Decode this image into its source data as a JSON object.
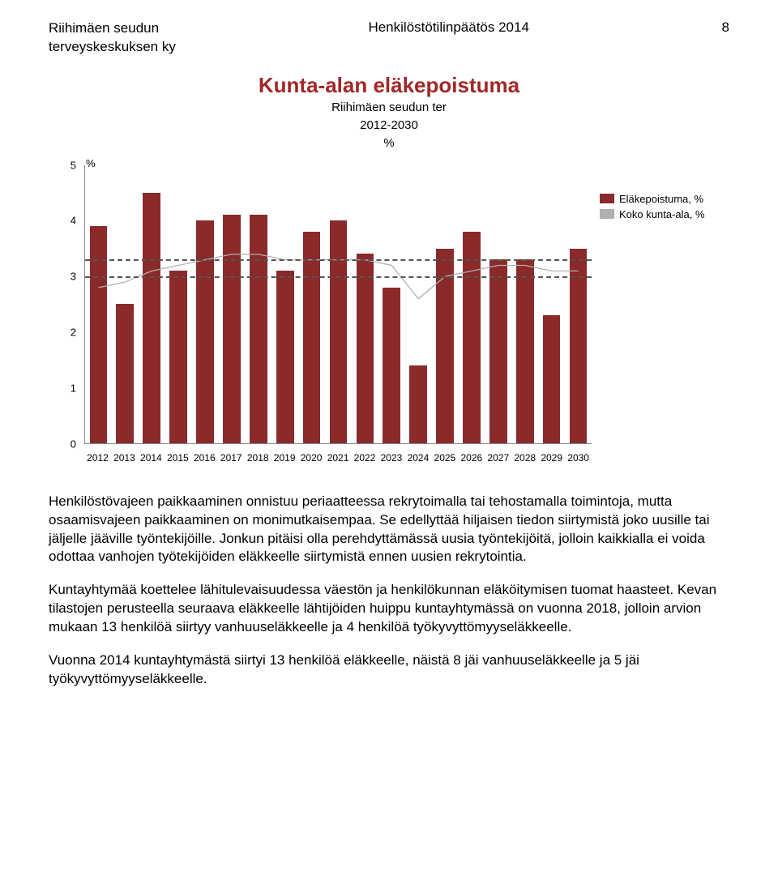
{
  "header": {
    "org_line1": "Riihimäen seudun",
    "org_line2": "terveyskeskuksen ky",
    "doc_title": "Henkilöstötilinpäätös 2014",
    "page_number": "8"
  },
  "chart": {
    "type": "bar",
    "main_title": "Kunta-alan eläkepoistuma",
    "sub1": "Riihimäen seudun ter",
    "sub2": "2012-2030",
    "sub3": "%",
    "y_unit": "%",
    "ylim_min": 0,
    "ylim_max": 5,
    "y_ticks": [
      0,
      1,
      2,
      3,
      4,
      5
    ],
    "dashed_lines": [
      3.0,
      3.3
    ],
    "bar_color": "#8a2a2a",
    "line_color": "#b0b0b0",
    "years": [
      "2012",
      "2013",
      "2014",
      "2015",
      "2016",
      "2017",
      "2018",
      "2019",
      "2020",
      "2021",
      "2022",
      "2023",
      "2024",
      "2025",
      "2026",
      "2027",
      "2028",
      "2029",
      "2030"
    ],
    "elakepoistuma_pct": [
      3.9,
      2.5,
      4.5,
      3.1,
      4.0,
      4.1,
      4.1,
      3.1,
      3.8,
      4.0,
      3.4,
      2.8,
      1.4,
      3.5,
      3.8,
      3.3,
      3.3,
      2.3,
      3.5
    ],
    "kunta_ala_pct": [
      2.8,
      2.9,
      3.1,
      3.2,
      3.3,
      3.4,
      3.4,
      3.3,
      3.3,
      3.3,
      3.3,
      3.2,
      2.6,
      3.0,
      3.1,
      3.2,
      3.2,
      3.1,
      3.1
    ],
    "legend": {
      "series1_label": "Eläkepoistuma, %",
      "series2_label": "Koko kunta-ala, %"
    }
  },
  "paragraphs": {
    "p1": "Henkilöstövajeen paikkaaminen onnistuu periaatteessa rekrytoimalla tai tehostamalla toimintoja, mutta osaamisvajeen paikkaaminen on monimutkaisempaa. Se edellyttää hiljaisen tiedon siirtymistä joko uusille tai jäljelle jääville työntekijöille. Jonkun pitäisi olla perehdyttämässä uusia työntekijöitä, jolloin kaikkialla ei voida odottaa vanhojen työtekijöiden eläkkeelle siirtymistä ennen uusien rekrytointia.",
    "p2": "Kuntayhtymää koettelee lähitulevaisuudessa väestön ja henkilökunnan eläköitymisen tuomat haasteet. Kevan tilastojen perusteella seuraava eläkkeelle lähtijöiden huippu kuntayhtymässä on vuonna 2018, jolloin arvion mukaan 13 henkilöä siirtyy vanhuuseläkkeelle ja 4 henkilöä työkyvyttömyyseläkkeelle.",
    "p3": "Vuonna 2014 kuntayhtymästä siirtyi 13 henkilöä eläkkeelle, näistä 8 jäi vanhuuseläkkeelle ja 5 jäi työkyvyttömyyseläkkeelle."
  }
}
